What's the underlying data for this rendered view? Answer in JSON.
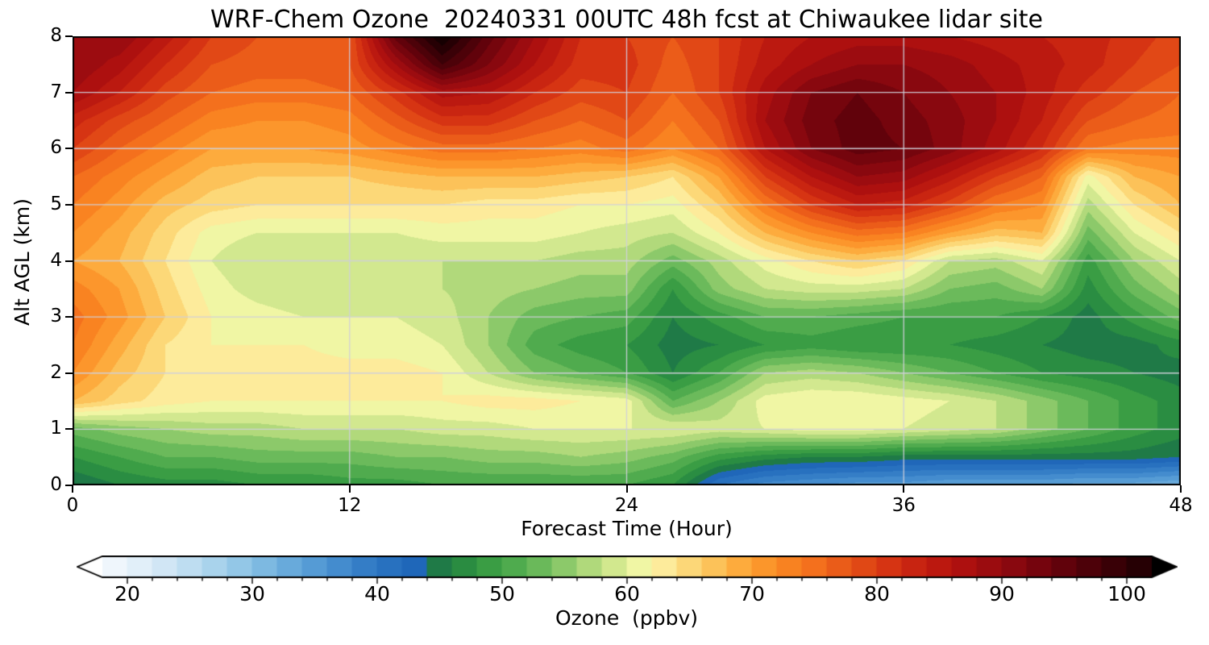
{
  "chart_data": {
    "type": "heatmap",
    "title": "WRF-Chem Ozone  20240331 00UTC 48h fcst at Chiwaukee lidar site",
    "xlabel": "Forecast Time (Hour)",
    "ylabel": "Alt AGL (km)",
    "xlim": [
      0,
      48
    ],
    "ylim": [
      0,
      8
    ],
    "xticks": [
      0,
      12,
      24,
      36,
      48
    ],
    "yticks": [
      0,
      1,
      2,
      3,
      4,
      5,
      6,
      7,
      8
    ],
    "grid": true,
    "contour_interval": 2,
    "x": [
      0,
      2,
      4,
      6,
      8,
      10,
      12,
      14,
      16,
      18,
      20,
      22,
      24,
      26,
      28,
      30,
      32,
      34,
      36,
      38,
      40,
      42,
      44,
      46,
      48
    ],
    "y": [
      0,
      0.5,
      1,
      1.5,
      2,
      2.5,
      3,
      3.5,
      4,
      4.5,
      5,
      5.5,
      6,
      6.5,
      7,
      7.5,
      8
    ],
    "values": [
      [
        44,
        46,
        47,
        47,
        48,
        48,
        49,
        49,
        50,
        50,
        50,
        50,
        50,
        48,
        40,
        37,
        36,
        35,
        35,
        34,
        34,
        34,
        33,
        33,
        32
      ],
      [
        48,
        50,
        52,
        52,
        53,
        53,
        53,
        54,
        54,
        55,
        55,
        56,
        55,
        53,
        49,
        47,
        46,
        46,
        45,
        45,
        45,
        45,
        45,
        45,
        44
      ],
      [
        53,
        55,
        56,
        57,
        57,
        58,
        58,
        58,
        59,
        59,
        60,
        60,
        60,
        60,
        59,
        60,
        61,
        61,
        60,
        59,
        58,
        55,
        52,
        49,
        47
      ],
      [
        68,
        65,
        63,
        62,
        62,
        62,
        62,
        62,
        62,
        63,
        63,
        62,
        61,
        52,
        56,
        61,
        62,
        62,
        61,
        60,
        58,
        55,
        52,
        49,
        47
      ],
      [
        72,
        67,
        64,
        63,
        63,
        63,
        63,
        63,
        62,
        58,
        54,
        52,
        50,
        46,
        50,
        56,
        57,
        56,
        54,
        52,
        50,
        48,
        47,
        46,
        45
      ],
      [
        74,
        69,
        64,
        62,
        62,
        62,
        61,
        61,
        60,
        56,
        51,
        49,
        48,
        45,
        46,
        48,
        49,
        48,
        48,
        48,
        47,
        46,
        45,
        45,
        47
      ],
      [
        75,
        71,
        66,
        62,
        61,
        60,
        60,
        60,
        59,
        56,
        53,
        52,
        51,
        46,
        49,
        52,
        52,
        51,
        50,
        50,
        50,
        48,
        45,
        49,
        53
      ],
      [
        73,
        70,
        65,
        61,
        59,
        58,
        58,
        58,
        58,
        57,
        56,
        55,
        55,
        48,
        55,
        58,
        59,
        59,
        58,
        54,
        53,
        56,
        47,
        53,
        57
      ],
      [
        70,
        68,
        64,
        60,
        58,
        58,
        58,
        58,
        58,
        58,
        58,
        57,
        57,
        53,
        57,
        61,
        64,
        66,
        64,
        58,
        57,
        60,
        49,
        56,
        60
      ],
      [
        72,
        69,
        65,
        61,
        60,
        60,
        60,
        60,
        61,
        61,
        61,
        60,
        59,
        58,
        62,
        68,
        72,
        75,
        74,
        70,
        67,
        68,
        53,
        60,
        64
      ],
      [
        74,
        71,
        67,
        65,
        64,
        64,
        64,
        64,
        64,
        63,
        63,
        62,
        62,
        61,
        66,
        74,
        80,
        84,
        83,
        79,
        74,
        72,
        57,
        64,
        68
      ],
      [
        76,
        73,
        70,
        67,
        66,
        66,
        66,
        67,
        68,
        68,
        68,
        67,
        66,
        64,
        70,
        80,
        86,
        90,
        89,
        85,
        80,
        76,
        61,
        68,
        70
      ],
      [
        80,
        76,
        73,
        70,
        70,
        70,
        71,
        73,
        75,
        75,
        74,
        73,
        75,
        72,
        76,
        86,
        92,
        95,
        94,
        91,
        87,
        82,
        74,
        73,
        73
      ],
      [
        83,
        79,
        76,
        73,
        72,
        72,
        73,
        77,
        81,
        81,
        78,
        76,
        78,
        74,
        78,
        88,
        93,
        95,
        93,
        91,
        88,
        84,
        78,
        76,
        75
      ],
      [
        88,
        84,
        79,
        76,
        75,
        75,
        76,
        81,
        87,
        86,
        82,
        79,
        80,
        76,
        80,
        87,
        92,
        94,
        92,
        90,
        88,
        85,
        81,
        78,
        76
      ],
      [
        90,
        87,
        82,
        78,
        77,
        77,
        78,
        88,
        98,
        92,
        86,
        81,
        81,
        77,
        80,
        85,
        88,
        90,
        90,
        89,
        87,
        85,
        83,
        80,
        78
      ],
      [
        88,
        90,
        85,
        80,
        78,
        78,
        78,
        95,
        104,
        95,
        88,
        82,
        80,
        78,
        80,
        84,
        86,
        87,
        87,
        86,
        85,
        84,
        83,
        81,
        79
      ]
    ],
    "colorbar": {
      "label": "Ozone  (ppbv)",
      "ticks": [
        20,
        30,
        40,
        50,
        60,
        70,
        80,
        90,
        100
      ],
      "minor_tick_step": 2,
      "vmin": 18,
      "vmax": 102,
      "extend": "both",
      "stops": [
        [
          16,
          "#ffffff"
        ],
        [
          20,
          "#eaf4fb"
        ],
        [
          24,
          "#c9e2f4"
        ],
        [
          28,
          "#9fcfea"
        ],
        [
          32,
          "#72b2de"
        ],
        [
          36,
          "#4c94d2"
        ],
        [
          40,
          "#2d76c2"
        ],
        [
          44,
          "#1b62b6"
        ],
        [
          45,
          "#1f7a47"
        ],
        [
          48,
          "#30963f"
        ],
        [
          52,
          "#5ab253"
        ],
        [
          55,
          "#8cc96a"
        ],
        [
          58,
          "#c3e184"
        ],
        [
          61,
          "#f0f6a4"
        ],
        [
          63,
          "#fdeb9b"
        ],
        [
          66,
          "#fcce67"
        ],
        [
          69,
          "#fdab3d"
        ],
        [
          72,
          "#fb8c23"
        ],
        [
          75,
          "#f4701d"
        ],
        [
          78,
          "#e65217"
        ],
        [
          81,
          "#d63413"
        ],
        [
          84,
          "#c21d10"
        ],
        [
          87,
          "#ad100f"
        ],
        [
          90,
          "#930a10"
        ],
        [
          94,
          "#6b030c"
        ],
        [
          98,
          "#430108"
        ],
        [
          102,
          "#1d0003"
        ],
        [
          106,
          "#000000"
        ]
      ]
    }
  }
}
